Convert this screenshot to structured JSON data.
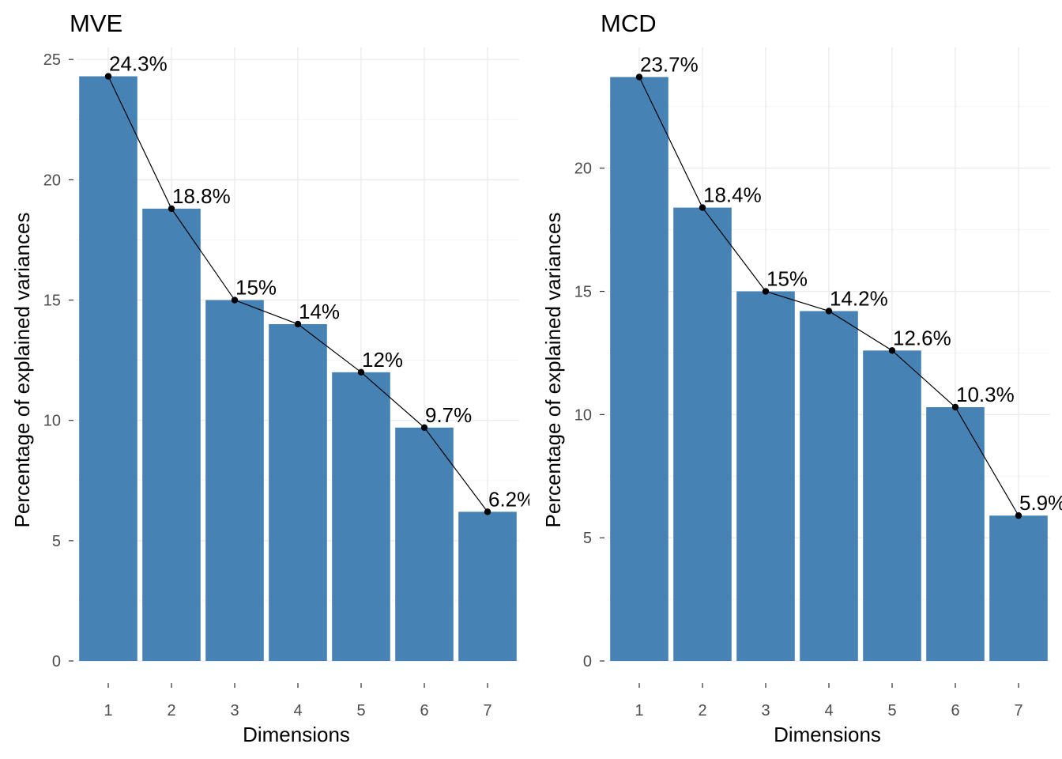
{
  "chart_data": [
    {
      "type": "bar",
      "title": "MVE",
      "xlabel": "Dimensions",
      "ylabel": "Percentage of explained variances",
      "categories": [
        "1",
        "2",
        "3",
        "4",
        "5",
        "6",
        "7"
      ],
      "values": [
        24.3,
        18.8,
        15.0,
        14.0,
        12.0,
        9.7,
        6.2
      ],
      "labels": [
        "24.3%",
        "18.8%",
        "15%",
        "14%",
        "12%",
        "9.7%",
        "6.2%"
      ],
      "yticks": [
        "0",
        "5",
        "10",
        "15",
        "20",
        "25"
      ],
      "ylim": [
        0,
        25.5
      ],
      "bar_color": "#4682B4",
      "line_color": "#000000",
      "grid": true
    },
    {
      "type": "bar",
      "title": "MCD",
      "xlabel": "Dimensions",
      "ylabel": "Percentage of explained variances",
      "categories": [
        "1",
        "2",
        "3",
        "4",
        "5",
        "6",
        "7"
      ],
      "values": [
        23.7,
        18.4,
        15.0,
        14.2,
        12.6,
        10.3,
        5.9
      ],
      "labels": [
        "23.7%",
        "18.4%",
        "15%",
        "14.2%",
        "12.6%",
        "10.3%",
        "5.9%"
      ],
      "yticks": [
        "0",
        "5",
        "10",
        "15",
        "20"
      ],
      "ylim": [
        0,
        24.9
      ],
      "bar_color": "#4682B4",
      "line_color": "#000000",
      "grid": true
    }
  ]
}
